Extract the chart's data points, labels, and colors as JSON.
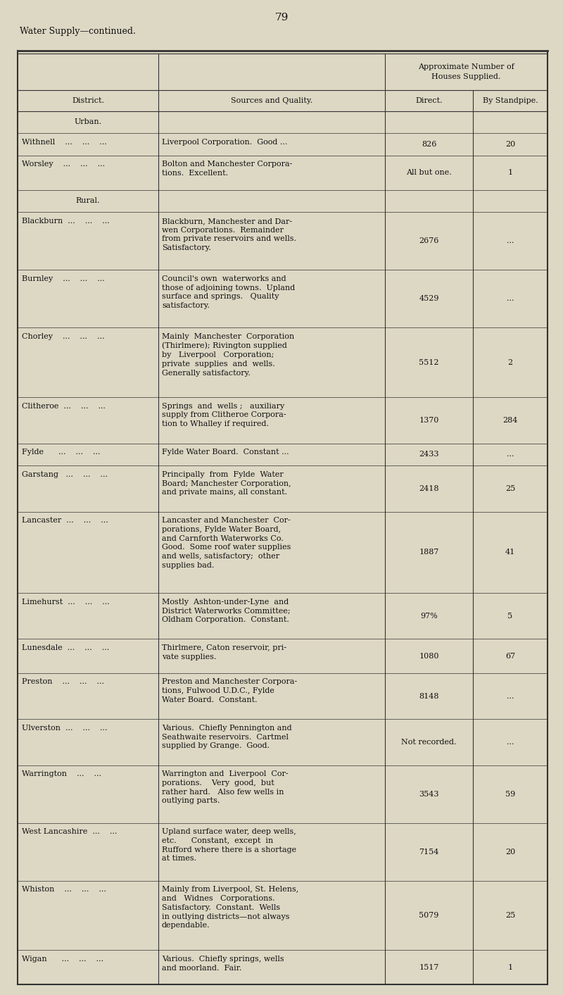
{
  "page_number": "79",
  "page_title": "Water Supply—continued.",
  "header_col1": "District.",
  "header_col2": "Sources and Quality.",
  "header_approx_line1": "Approximate Number of",
  "header_approx_line2": "Houses Supplied.",
  "header_direct": "Direct.",
  "header_standpipe": "By Standpipe.",
  "section_urban": "Urban.",
  "section_rural": "Rural.",
  "rows": [
    {
      "district": "Withnell    ...    ...    ...",
      "sources": "Liverpool Corporation.  Good ...",
      "direct": "826",
      "standpipe": "20",
      "section": "urban"
    },
    {
      "district": "Worsley    ...    ...    ...",
      "sources": "Bolton and Manchester Corpora-\ntions.  Excellent.",
      "direct": "All but one.",
      "standpipe": "1",
      "section": "urban"
    },
    {
      "district": "Blackburn  ...    ...    ...",
      "sources": "Blackburn, Manchester and Dar-\nwen Corporations.  Remainder\nfrom private reservoirs and wells.\nSatisfactory.",
      "direct": "2676",
      "standpipe": "...",
      "section": "rural"
    },
    {
      "district": "Burnley    ...    ...    ...",
      "sources": "Council's own  waterworks and\nthose of adjoining towns.  Upland\nsurface and springs.   Quality\nsatisfactory.",
      "direct": "4529",
      "standpipe": "...",
      "section": "rural"
    },
    {
      "district": "Chorley    ...    ...    ...",
      "sources": "Mainly  Manchester  Corporation\n(Thirlmere); Rivington supplied\nby   Liverpool   Corporation;\nprivate  supplies  and  wells.\nGenerally satisfactory.",
      "direct": "5512",
      "standpipe": "2",
      "section": "rural"
    },
    {
      "district": "Clitheroe  ...    ...    ...",
      "sources": "Springs  and  wells ;   auxiliary\nsupply from Clitheroe Corpora-\ntion to Whalley if required.",
      "direct": "1370",
      "standpipe": "284",
      "section": "rural"
    },
    {
      "district": "Fylde      ...    ...    ...",
      "sources": "Fylde Water Board.  Constant ...",
      "direct": "2433",
      "standpipe": "...",
      "section": "rural"
    },
    {
      "district": "Garstang   ...    ...    ...",
      "sources": "Principally  from  Fylde  Water\nBoard; Manchester Corporation,\nand private mains, all constant.",
      "direct": "2418",
      "standpipe": "25",
      "section": "rural"
    },
    {
      "district": "Lancaster  ...    ...    ...",
      "sources": "Lancaster and Manchester  Cor-\nporations, Fylde Water Board,\nand Carnforth Waterworks Co.\nGood.  Some roof water supplies\nand wells, satisfactory;  other\nsupplies bad.",
      "direct": "1887",
      "standpipe": "41",
      "section": "rural"
    },
    {
      "district": "Limehurst  ...    ...    ...",
      "sources": "Mostly  Ashton-under-Lyne  and\nDistrict Waterworks Committee;\nOldham Corporation.  Constant.",
      "direct": "97%",
      "standpipe": "5",
      "section": "rural"
    },
    {
      "district": "Lunesdale  ...    ...    ...",
      "sources": "Thirlmere, Caton reservoir, pri-\nvate supplies.",
      "direct": "1080",
      "standpipe": "67",
      "section": "rural"
    },
    {
      "district": "Preston    ...    ...    ...",
      "sources": "Preston and Manchester Corpora-\ntions, Fulwood U.D.C., Fylde\nWater Board.  Constant.",
      "direct": "8148",
      "standpipe": "...",
      "section": "rural"
    },
    {
      "district": "Ulverston  ...    ...    ...",
      "sources": "Various.  Chiefly Pennington and\nSeathwaite reservoirs.  Cartmel\nsupplied by Grange.  Good.",
      "direct": "Not recorded.",
      "standpipe": "...",
      "section": "rural"
    },
    {
      "district": "Warrington    ...    ...",
      "sources": "Warrington and  Liverpool  Cor-\nporations.    Very  good,  but\nrather hard.   Also few wells in\noutlying parts.",
      "direct": "3543",
      "standpipe": "59",
      "section": "rural"
    },
    {
      "district": "West Lancashire  ...    ...",
      "sources": "Upland surface water, deep wells,\netc.      Constant,  except  in\nRufford where there is a shortage\nat times.",
      "direct": "7154",
      "standpipe": "20",
      "section": "rural"
    },
    {
      "district": "Whiston    ...    ...    ...",
      "sources": "Mainly from Liverpool, St. Helens,\nand   Widnes   Corporations.\nSatisfactory.  Constant.  Wells\nin outlying districts—not always\ndependable.",
      "direct": "5079",
      "standpipe": "25",
      "section": "rural"
    },
    {
      "district": "Wigan      ...    ...    ...",
      "sources": "Various.  Chiefly springs, wells\nand moorland.  Fair.",
      "direct": "1517",
      "standpipe": "1",
      "section": "rural"
    }
  ],
  "bg_color": "#ddd8c4",
  "text_color": "#111111",
  "line_color": "#333333",
  "font_size": 8.0,
  "header_font_size": 8.0
}
